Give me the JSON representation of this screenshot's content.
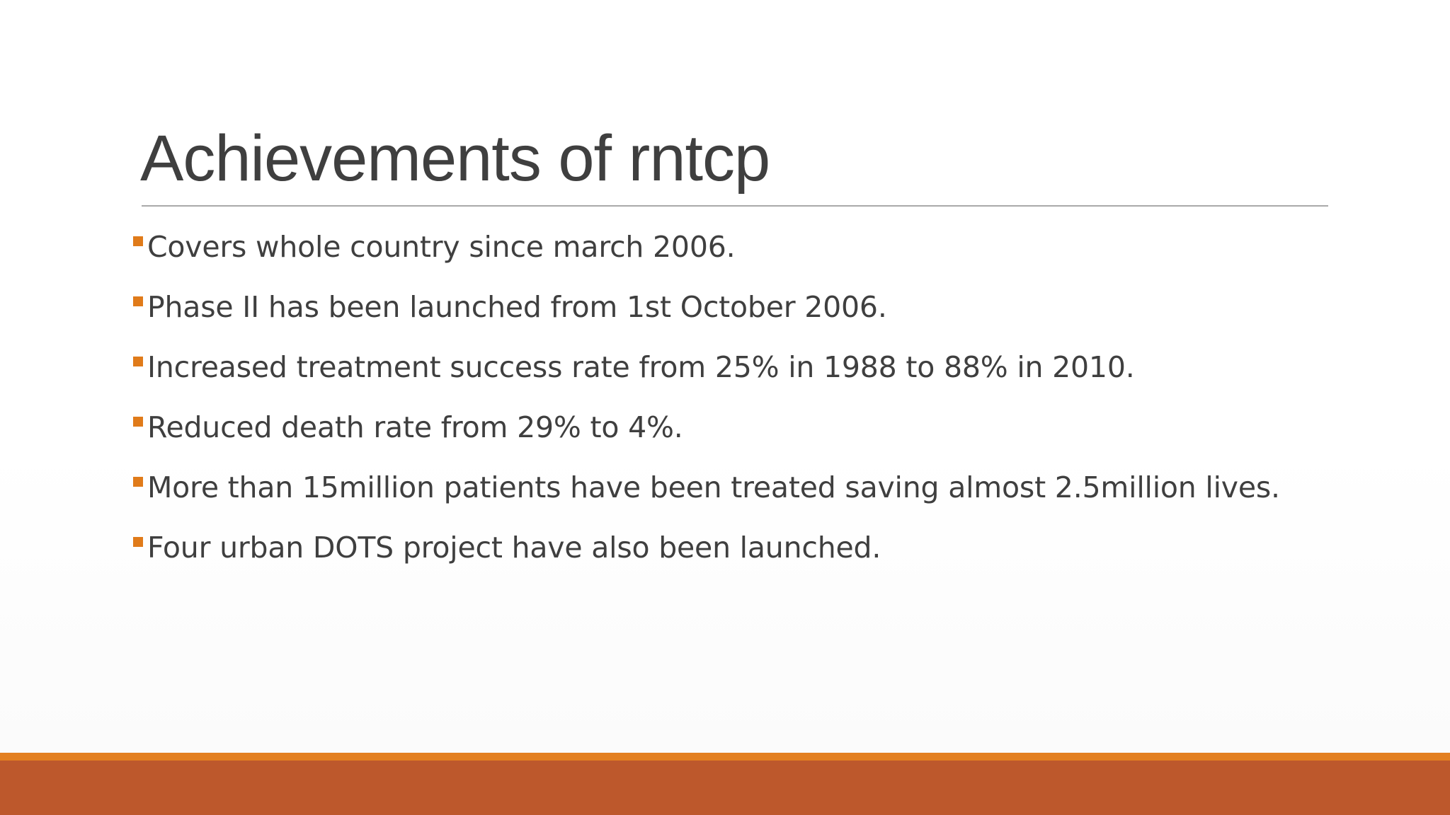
{
  "slide": {
    "title": "Achievements of rntcp",
    "bullets": [
      "Covers whole country since march 2006.",
      "Phase II has been launched from 1st October 2006.",
      "Increased treatment success rate from 25% in 1988 to 88% in 2010.",
      "Reduced death rate from 29% to 4%.",
      "More than 15million patients have been treated saving almost 2.5million lives.",
      "Four urban DOTS project have also been launched."
    ]
  },
  "colors": {
    "title_text": "#3f3f3f",
    "body_text": "#3f3f3f",
    "bullet_marker": "#e07b1a",
    "rule": "#a9a9a9",
    "footer_accent": "#e38021",
    "footer_main": "#bd582c"
  },
  "icons": {
    "bullet": "square-bullet-icon"
  }
}
